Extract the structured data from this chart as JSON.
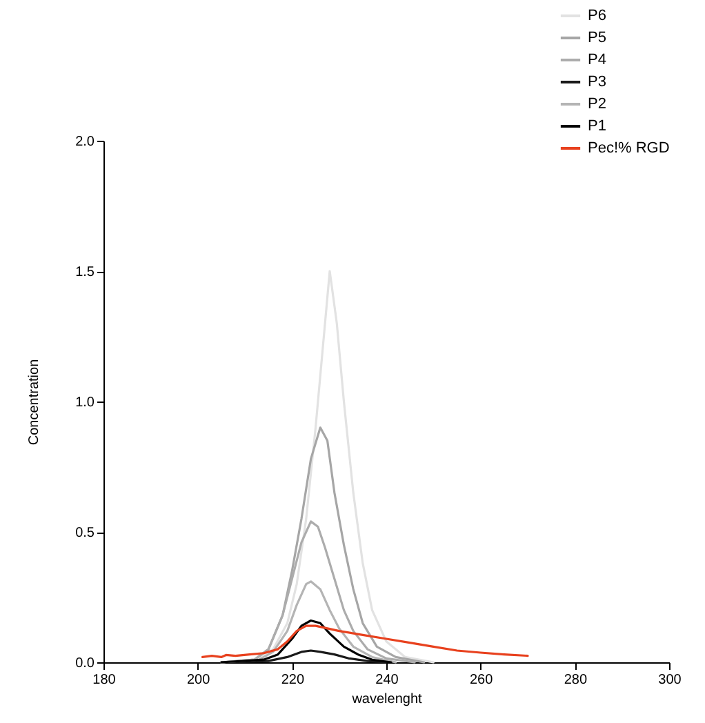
{
  "chart_data": {
    "type": "line",
    "xlabel": "wavelenght",
    "ylabel": "Concentration",
    "xlim": [
      180,
      300
    ],
    "xticks": [
      180,
      200,
      220,
      240,
      260,
      280,
      300
    ],
    "ylim": [
      0,
      2
    ],
    "yticks": [
      {
        "value": 0,
        "label": "0.0"
      },
      {
        "value": 0.5,
        "label": "0.5"
      },
      {
        "value": 1,
        "label": "1.0"
      },
      {
        "value": 1.5,
        "label": "1.5"
      },
      {
        "value": 2,
        "label": "2.0"
      }
    ],
    "grid": false,
    "legend": "top right",
    "marker": "none",
    "line_style": "solid",
    "series": [
      {
        "name": "P6",
        "color": "#e2e2e2",
        "x": [
          205,
          212,
          216,
          219,
          221,
          223,
          225,
          226.5,
          228,
          229.5,
          231,
          233,
          235,
          237,
          240,
          244,
          250
        ],
        "values": [
          0,
          0.01,
          0.05,
          0.15,
          0.3,
          0.55,
          0.9,
          1.2,
          1.5,
          1.3,
          1.0,
          0.65,
          0.38,
          0.2,
          0.08,
          0.02,
          0
        ]
      },
      {
        "name": "P5",
        "color": "#a6a6a6",
        "x": [
          205,
          212,
          215,
          218,
          220,
          222,
          224,
          226,
          227.5,
          229,
          231,
          233,
          235,
          238,
          242,
          248
        ],
        "values": [
          0,
          0.01,
          0.05,
          0.18,
          0.35,
          0.55,
          0.78,
          0.9,
          0.85,
          0.65,
          0.45,
          0.28,
          0.15,
          0.06,
          0.02,
          0
        ]
      },
      {
        "name": "P4",
        "color": "#acacac",
        "x": [
          205,
          212,
          215,
          218,
          220,
          222,
          224,
          225.5,
          227,
          229,
          231,
          233,
          236,
          240,
          246
        ],
        "values": [
          0,
          0.01,
          0.05,
          0.18,
          0.32,
          0.46,
          0.54,
          0.52,
          0.44,
          0.32,
          0.2,
          0.12,
          0.05,
          0.015,
          0
        ]
      },
      {
        "name": "P3",
        "color": "#1a1a1a",
        "x": [
          205,
          215,
          219,
          222,
          224,
          226,
          229,
          232,
          236,
          240
        ],
        "values": [
          0,
          0.005,
          0.02,
          0.04,
          0.045,
          0.04,
          0.03,
          0.015,
          0.005,
          0
        ]
      },
      {
        "name": "P2",
        "color": "#b4b4b4",
        "x": [
          205,
          213,
          216,
          219,
          221,
          223,
          224,
          226,
          228,
          230,
          233,
          237,
          242
        ],
        "values": [
          0,
          0.01,
          0.04,
          0.12,
          0.22,
          0.3,
          0.31,
          0.28,
          0.2,
          0.13,
          0.06,
          0.02,
          0
        ]
      },
      {
        "name": "P1",
        "color": "#000000",
        "x": [
          205,
          214,
          217,
          220,
          222,
          224,
          226,
          228,
          231,
          234,
          237,
          241
        ],
        "values": [
          0,
          0.01,
          0.03,
          0.09,
          0.14,
          0.16,
          0.15,
          0.11,
          0.06,
          0.03,
          0.01,
          0
        ]
      },
      {
        "name": "Pec!% RGD",
        "color": "#e8411e",
        "x": [
          201,
          203,
          205,
          206,
          208,
          211,
          214,
          217,
          219,
          221,
          223,
          225,
          230,
          235,
          240,
          245,
          250,
          255,
          260,
          265,
          270
        ],
        "values": [
          0.02,
          0.025,
          0.02,
          0.028,
          0.025,
          0.03,
          0.035,
          0.05,
          0.08,
          0.12,
          0.14,
          0.14,
          0.12,
          0.105,
          0.09,
          0.075,
          0.06,
          0.045,
          0.037,
          0.03,
          0.025
        ]
      }
    ]
  }
}
